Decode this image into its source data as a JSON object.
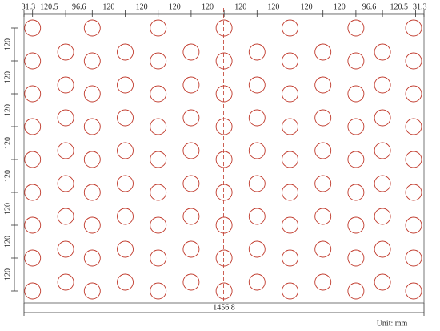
{
  "dimensions": {
    "top": [
      "31.3",
      "120.5",
      "96.6",
      "120",
      "120",
      "120",
      "120",
      "120",
      "120",
      "120",
      "120",
      "96.6",
      "120.5",
      "31.3"
    ],
    "left": [
      "120",
      "120",
      "120",
      "120",
      "120",
      "120",
      "120",
      "120"
    ],
    "total_width": "1456.8"
  },
  "unit": "Unit: mm"
}
